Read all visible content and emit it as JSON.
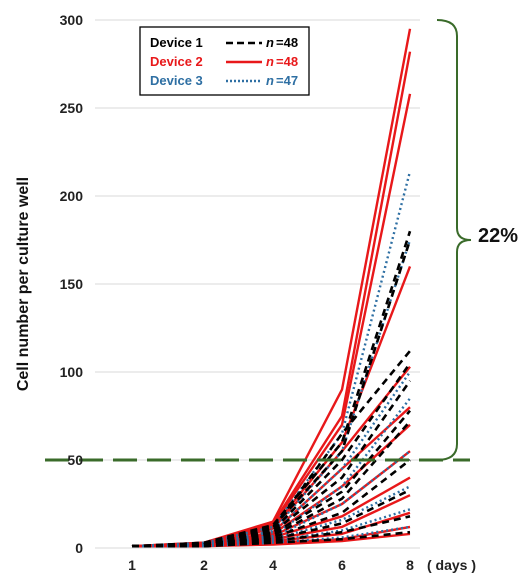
{
  "chart_data": {
    "type": "line",
    "title": "",
    "ylabel": "Cell number per culture well",
    "xlabel": "( days )",
    "x": [
      1,
      2,
      4,
      6,
      8
    ],
    "xticks": [
      "1",
      "2",
      "4",
      "6",
      "8"
    ],
    "ylim": [
      0,
      300
    ],
    "yticks": [
      "0",
      "50",
      "100",
      "150",
      "200",
      "250",
      "300"
    ],
    "grid": true,
    "legend_position": "top-left",
    "threshold": {
      "y": 50,
      "color": "#3a6b2a",
      "style": "dashed"
    },
    "bracket_label": "22%",
    "colors": {
      "device1": "#000000",
      "device2": "#e8181a",
      "device3": "#2e6fa3",
      "threshold": "#3a6b2a"
    },
    "legend": [
      {
        "device": "Device 1",
        "n": "=48",
        "color": "#000000",
        "style": "dashed"
      },
      {
        "device": "Device 2",
        "n": "=48",
        "color": "#e8181a",
        "style": "solid"
      },
      {
        "device": "Device 3",
        "n": "=47",
        "color": "#2e6fa3",
        "style": "dotted"
      }
    ],
    "series": [
      {
        "group": "device2",
        "values": [
          1,
          3,
          15,
          90,
          295
        ]
      },
      {
        "group": "device2",
        "values": [
          1,
          3,
          14,
          75,
          282
        ]
      },
      {
        "group": "device2",
        "values": [
          1,
          2,
          13,
          70,
          258
        ]
      },
      {
        "group": "device2",
        "values": [
          1,
          3,
          12,
          60,
          160
        ]
      },
      {
        "group": "device2",
        "values": [
          1,
          2,
          11,
          55,
          103
        ]
      },
      {
        "group": "device2",
        "values": [
          1,
          2,
          9,
          45,
          80
        ]
      },
      {
        "group": "device2",
        "values": [
          1,
          2,
          8,
          35,
          70
        ]
      },
      {
        "group": "device2",
        "values": [
          1,
          2,
          7,
          25,
          55
        ]
      },
      {
        "group": "device2",
        "values": [
          1,
          2,
          6,
          18,
          40
        ]
      },
      {
        "group": "device2",
        "values": [
          1,
          2,
          5,
          12,
          30
        ]
      },
      {
        "group": "device2",
        "values": [
          1,
          2,
          4,
          8,
          20
        ]
      },
      {
        "group": "device2",
        "values": [
          1,
          1,
          3,
          5,
          12
        ]
      },
      {
        "group": "device2",
        "values": [
          1,
          1,
          2,
          4,
          8
        ]
      },
      {
        "group": "device3",
        "values": [
          1,
          3,
          12,
          65,
          214
        ]
      },
      {
        "group": "device3",
        "values": [
          1,
          2,
          10,
          55,
          175
        ]
      },
      {
        "group": "device3",
        "values": [
          1,
          2,
          9,
          45,
          100
        ]
      },
      {
        "group": "device3",
        "values": [
          1,
          2,
          7,
          35,
          85
        ]
      },
      {
        "group": "device3",
        "values": [
          1,
          2,
          6,
          25,
          55
        ]
      },
      {
        "group": "device3",
        "values": [
          1,
          2,
          5,
          16,
          35
        ]
      },
      {
        "group": "device3",
        "values": [
          1,
          2,
          4,
          10,
          22
        ]
      },
      {
        "group": "device3",
        "values": [
          1,
          1,
          3,
          6,
          12
        ]
      },
      {
        "group": "device1",
        "values": [
          1,
          3,
          13,
          60,
          180
        ]
      },
      {
        "group": "device1",
        "values": [
          1,
          2,
          12,
          55,
          175
        ]
      },
      {
        "group": "device1",
        "values": [
          1,
          2,
          11,
          65,
          112
        ]
      },
      {
        "group": "device1",
        "values": [
          1,
          2,
          10,
          50,
          105
        ]
      },
      {
        "group": "device1",
        "values": [
          1,
          2,
          9,
          40,
          95
        ]
      },
      {
        "group": "device1",
        "values": [
          1,
          2,
          8,
          32,
          78
        ]
      },
      {
        "group": "device1",
        "values": [
          1,
          2,
          7,
          28,
          72
        ]
      },
      {
        "group": "device1",
        "values": [
          1,
          2,
          6,
          20,
          50
        ]
      },
      {
        "group": "device1",
        "values": [
          1,
          2,
          5,
          14,
          33
        ]
      },
      {
        "group": "device1",
        "values": [
          1,
          1,
          4,
          9,
          18
        ]
      },
      {
        "group": "device1",
        "values": [
          1,
          1,
          3,
          5,
          9
        ]
      }
    ]
  }
}
